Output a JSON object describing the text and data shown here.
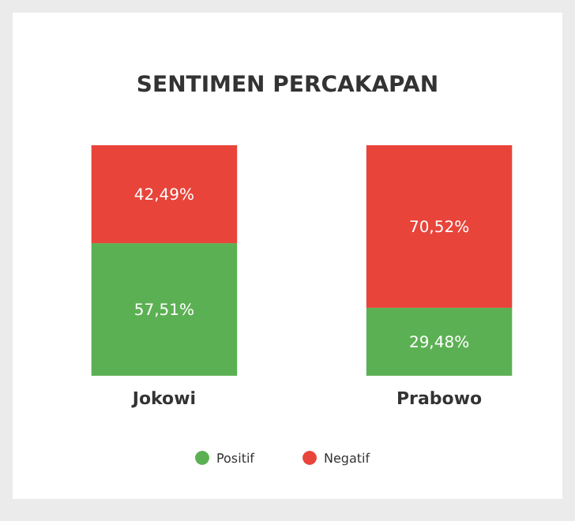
{
  "chart_data": {
    "type": "bar",
    "title": "SENTIMEN PERCAKAPAN",
    "categories": [
      "Jokowi",
      "Prabowo"
    ],
    "stacked": true,
    "legend": "bottom",
    "series": [
      {
        "name": "Positif",
        "color": "#5cb054",
        "values": [
          57.51,
          29.48
        ],
        "value_labels": [
          "57,51%",
          "29,48%"
        ]
      },
      {
        "name": "Negatif",
        "color": "#e8443a",
        "values": [
          42.49,
          70.52
        ],
        "value_labels": [
          "42,49%",
          "70,52%"
        ]
      }
    ]
  }
}
